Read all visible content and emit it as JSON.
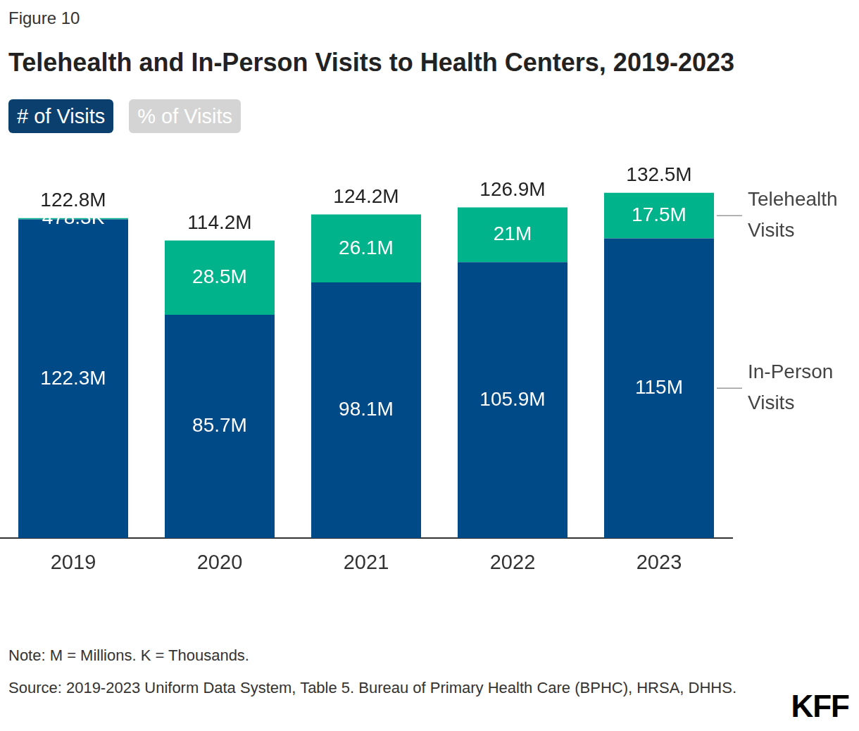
{
  "figure_label": "Figure 10",
  "buttons": [
    "# of Visits",
    "% of Visits"
  ],
  "chart_data": {
    "type": "bar",
    "title": "Telehealth and In-Person Visits to Health Centers, 2019-2023",
    "stacked": true,
    "categories": [
      "2019",
      "2020",
      "2021",
      "2022",
      "2023"
    ],
    "series": [
      {
        "name": "In-Person Visits",
        "color": "#004b87",
        "values": [
          122.3,
          85.7,
          98.1,
          105.9,
          115
        ],
        "value_labels": [
          "122.3M",
          "85.7M",
          "98.1M",
          "105.9M",
          "115M"
        ]
      },
      {
        "name": "Telehealth Visits",
        "color": "#00b38a",
        "values": [
          0.4783,
          28.5,
          26.1,
          21,
          17.5
        ],
        "value_labels": [
          "478.3K",
          "28.5M",
          "26.1M",
          "21M",
          "17.5M"
        ]
      }
    ],
    "totals": [
      122.8,
      114.2,
      124.2,
      126.9,
      132.5
    ],
    "total_labels": [
      "122.8M",
      "114.2M",
      "124.2M",
      "126.9M",
      "132.5M"
    ],
    "ylim": [
      0,
      140
    ],
    "data_labels": true,
    "tick_labels": "x",
    "grid": false,
    "legend": "right"
  },
  "note": "Note: M = Millions. K = Thousands.",
  "source": "Source: 2019-2023 Uniform Data System, Table 5. Bureau of Primary Health Care (BPHC), HRSA, DHHS.",
  "logo": "KFF"
}
